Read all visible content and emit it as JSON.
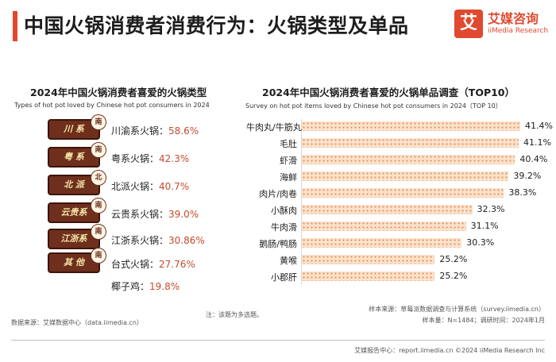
{
  "title": "中国火锅消费者消费行为：火锅类型及单品",
  "logo": {
    "mark": "艾",
    "name": "艾媒咨询",
    "sub": "iiMedia Research"
  },
  "left_chart": {
    "title": "2024年中国火锅消费者喜爱的火锅类型",
    "subtitle": "Types of hot pot loved by Chinese hot pot consumers in 2024",
    "items": [
      {
        "label": "川渝系火锅：",
        "value": "58.6%",
        "icon_text": "川 系",
        "stamp": "南"
      },
      {
        "label": "粤系火锅：",
        "value": "42.3%",
        "icon_text": "粤 系",
        "stamp": "南"
      },
      {
        "label": "北派火锅：",
        "value": "40.7%",
        "icon_text": "北 派",
        "stamp": "北"
      },
      {
        "label": "云贵系火锅：",
        "value": "39.0%",
        "icon_text": "云贵系",
        "stamp": "南"
      },
      {
        "label": "江浙系火锅：",
        "value": "30.86%",
        "icon_text": "江浙系",
        "stamp": "南"
      },
      {
        "label": "台式火锅：",
        "value": "27.76%",
        "icon_text": "其 他",
        "stamp": "南"
      },
      {
        "label": "椰子鸡：",
        "value": "19.8%"
      }
    ]
  },
  "chart_data": {
    "type": "bar",
    "title": "2024年中国火锅消费者喜爱的火锅单品调查（TOP10）",
    "subtitle": "Survey on hot pot items loved by Chinese hot pot consumers in 2024（TOP 10）",
    "orientation": "horizontal",
    "categories": [
      "牛肉丸/牛筋丸",
      "毛肚",
      "虾滑",
      "海鲜",
      "肉片/肉卷",
      "小酥肉",
      "牛肉滑",
      "鹅肠/鸭肠",
      "黄喉",
      "小郡肝"
    ],
    "values": [
      41.4,
      41.1,
      40.4,
      39.2,
      38.3,
      32.3,
      31.1,
      30.3,
      25.2,
      25.2
    ],
    "value_labels": [
      "41.4%",
      "41.1%",
      "40.4%",
      "39.2%",
      "38.3%",
      "32.3%",
      "31.1%",
      "30.3%",
      "25.2%",
      "25.2%"
    ],
    "unit": "%",
    "xlim": [
      0,
      45
    ]
  },
  "footer": {
    "source": "数据来源：艾媒数据中心（data.iimedia.cn）",
    "note": "注：该题为多选题。",
    "sample_source": "样本来源：草莓派数据调查与计算系统（survey.iimedia.cn）",
    "sample_info": "样本量：N=1484；调研时间：2024年1月",
    "copyright": "艾媒报告中心：report.iimedia.cn ©2024  iiMedia Research  Inc"
  }
}
